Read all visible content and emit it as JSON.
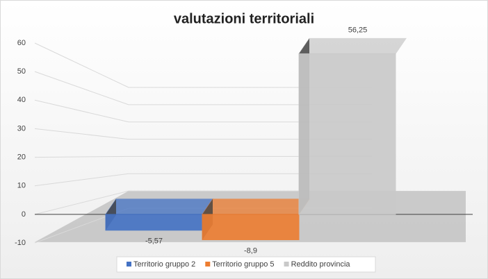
{
  "chart_data": {
    "type": "bar3d",
    "title": "valutazioni territoriali",
    "categories": [
      null
    ],
    "series": [
      {
        "name": "Territorio gruppo 2",
        "color": "#4472c4",
        "values": [
          -5.57
        ],
        "value_labels": [
          "-5,57"
        ]
      },
      {
        "name": "Territorio gruppo 5",
        "color": "#ed7d31",
        "values": [
          -8.9
        ],
        "value_labels": [
          "-8,9"
        ]
      },
      {
        "name": "Reddito provincia",
        "color": "#c9c9c9",
        "values": [
          56.25
        ],
        "value_labels": [
          "56,25"
        ]
      }
    ],
    "ylim": [
      -10,
      60
    ],
    "yticks": [
      -10,
      0,
      10,
      20,
      30,
      40,
      50,
      60
    ],
    "grid": true,
    "legend": "bottom"
  }
}
